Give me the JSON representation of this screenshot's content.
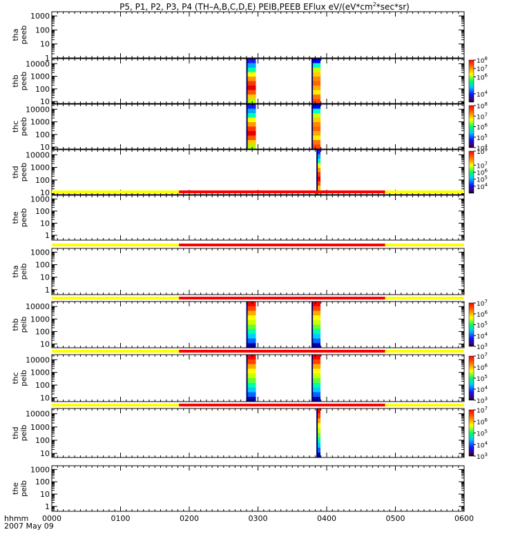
{
  "title": {
    "main": "P5, P1, P2, P3, P4 (TH–A,B,C,D,E) PEIB,PEEB EFlux eV/(eV*cm",
    "sup": "2",
    "tail": "*sec*sr)"
  },
  "xaxis": {
    "ticks": [
      "0000",
      "0100",
      "0200",
      "0300",
      "0400",
      "0500",
      "0600"
    ],
    "label": "hhmm",
    "date": "2007 May 09"
  },
  "colors": {
    "bar_yellow": "#ffff00",
    "bar_red": "#ff0000",
    "frame": "#000000"
  },
  "chart_data": {
    "type": "heatmap",
    "x_range_hours": [
      0,
      6
    ],
    "y_scale": "log",
    "panels": [
      {
        "probe": "tha",
        "product": "peeb",
        "ylabels": [
          "1000",
          "100",
          "10",
          "1"
        ],
        "ylim": [
          1,
          2000
        ],
        "has_data": false,
        "status_bar": false,
        "colorbar": null
      },
      {
        "probe": "thb",
        "product": "peeb",
        "ylabels": [
          "10000",
          "1000",
          "100",
          "10"
        ],
        "ylim": [
          7,
          25000
        ],
        "has_data": true,
        "status_bar": false,
        "colorbar": {
          "labels": [
            "10",
            "10",
            "10",
            "10"
          ],
          "exps": [
            "8",
            "7",
            "6",
            "4"
          ],
          "range_exp": [
            3,
            8
          ]
        }
      },
      {
        "probe": "thc",
        "product": "peeb",
        "ylabels": [
          "10000",
          "1000",
          "100",
          "10"
        ],
        "ylim": [
          7,
          25000
        ],
        "has_data": true,
        "status_bar": false,
        "colorbar": {
          "labels": [
            "10",
            "10",
            "10",
            "10",
            "10"
          ],
          "exps": [
            "8",
            "7",
            "6",
            "5",
            "4"
          ],
          "range_exp": [
            4,
            8
          ]
        }
      },
      {
        "probe": "thd",
        "product": "peeb",
        "ylabels": [
          "10000",
          "1000",
          "100",
          "10"
        ],
        "ylim": [
          7,
          25000
        ],
        "has_data": true,
        "status_bar": false,
        "colorbar": {
          "labels": [
            "10",
            "10",
            "10",
            "10",
            "10"
          ],
          "exps": [
            "9",
            "7",
            "6",
            "5",
            "4"
          ],
          "range_exp": [
            3,
            9
          ]
        }
      },
      {
        "probe": "the",
        "product": "peeb",
        "ylabels": [
          "1000",
          "100",
          "10",
          "1"
        ],
        "ylim": [
          0.4,
          2000
        ],
        "has_data": false,
        "status_bar": true,
        "colorbar": null
      },
      {
        "probe": "tha",
        "product": "peib",
        "ylabels": [
          "1000",
          "100",
          "10",
          "1"
        ],
        "ylim": [
          0.4,
          2000
        ],
        "has_data": false,
        "status_bar": true,
        "colorbar": null
      },
      {
        "probe": "thb",
        "product": "peib",
        "ylabels": [
          "10000",
          "1000",
          "100",
          "10"
        ],
        "ylim": [
          5,
          25000
        ],
        "has_data": true,
        "status_bar": true,
        "colorbar": {
          "labels": [
            "10",
            "10",
            "10",
            "10",
            "10"
          ],
          "exps": [
            "7",
            "6",
            "5",
            "4",
            "3"
          ],
          "range_exp": [
            3,
            7
          ]
        }
      },
      {
        "probe": "thc",
        "product": "peib",
        "ylabels": [
          "10000",
          "1000",
          "100",
          "10"
        ],
        "ylim": [
          5,
          25000
        ],
        "has_data": true,
        "status_bar": true,
        "colorbar": {
          "labels": [
            "10",
            "10",
            "10",
            "10",
            "10"
          ],
          "exps": [
            "7",
            "6",
            "5",
            "4",
            "3"
          ],
          "range_exp": [
            3,
            7
          ]
        }
      },
      {
        "probe": "thd",
        "product": "peib",
        "ylabels": [
          "10000",
          "1000",
          "100",
          "10"
        ],
        "ylim": [
          5,
          25000
        ],
        "has_data": true,
        "status_bar": true,
        "colorbar": {
          "labels": [
            "10",
            "10",
            "10",
            "10",
            "10"
          ],
          "exps": [
            "7",
            "6",
            "5",
            "4",
            "3"
          ],
          "range_exp": [
            3,
            7
          ]
        }
      },
      {
        "probe": "the",
        "product": "peib",
        "ylabels": [
          "1000",
          "100",
          "10",
          "1"
        ],
        "ylim": [
          0.4,
          2000
        ],
        "has_data": false,
        "status_bar": false,
        "colorbar": null
      }
    ],
    "data_intervals_hours": {
      "thb": [
        [
          2.83,
          2.97
        ],
        [
          3.78,
          3.91
        ]
      ],
      "thc": [
        [
          2.83,
          2.97
        ],
        [
          3.78,
          3.91
        ]
      ],
      "thd": [
        [
          3.85,
          3.91
        ]
      ]
    },
    "status_bar_red_hours": [
      1.85,
      4.85
    ]
  }
}
